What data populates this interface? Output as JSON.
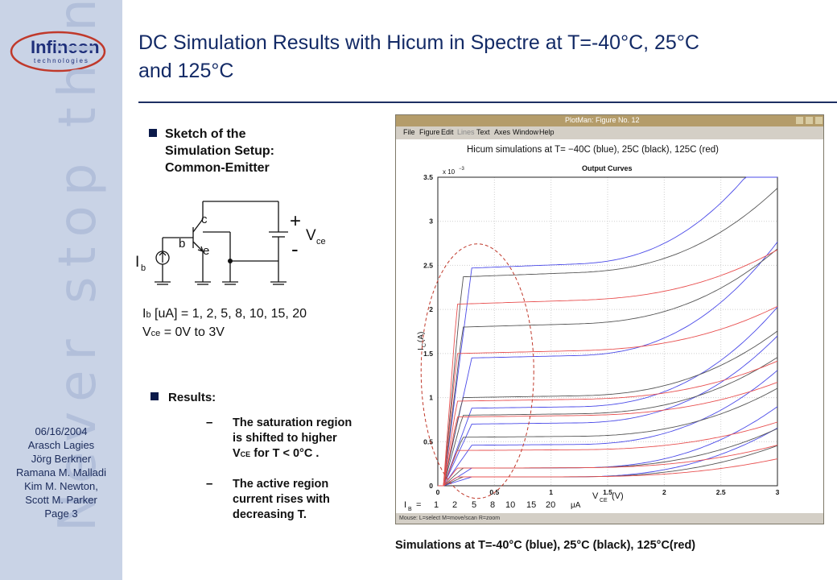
{
  "sidebar": {
    "logo_text": "Infineon",
    "logo_sub": "technologies",
    "watermark": "Never stop thinking",
    "meta_lines": [
      "06/16/2004",
      "Arasch Lagies",
      "Jörg Berkner",
      "Ramana M. Malladi",
      "Kim M. Newton,",
      "Scott M. Parker",
      "Page 3"
    ]
  },
  "title_line1": "DC Simulation Results with Hicum in Spectre at T=-40°C, 25°C",
  "title_line2": "and 125°C",
  "setup": {
    "heading_lines": [
      "Sketch of the",
      "Simulation Setup:",
      "Common-Emitter"
    ],
    "labels": {
      "c": "c",
      "b": "b",
      "e": "e",
      "Ib_main": "I",
      "Ib_sub": "b",
      "plus": "+",
      "minus": "-",
      "Vce_main": "V",
      "Vce_sub": "ce"
    },
    "ib_line_main": "I",
    "ib_line_sub": "b",
    "ib_line_rest": " [uA] = 1, 2, 5, 8, 10, 15, 20",
    "vce_line_main": "V",
    "vce_line_sub": "ce",
    "vce_line_rest": " = 0V to 3V"
  },
  "results": {
    "heading": "Results:",
    "dash": "–",
    "item1_lines": [
      "The saturation region",
      "is shifted to higher"
    ],
    "item1_v": "V",
    "item1_vsub": "CE",
    "item1_tail": " for T < 0°C .",
    "item2_lines": [
      "The active region",
      "current rises with",
      "decreasing T."
    ]
  },
  "window": {
    "title": "PlotMan: Figure No. 12",
    "menus": [
      "File",
      "Figure",
      "Edit",
      "Lines",
      "Text",
      "Axes",
      "Window",
      "Help"
    ],
    "status": "Mouse: L=select  M=move/scan  R=zoom"
  },
  "chart_data": {
    "type": "line",
    "title": "Hicum simulations at T= −40C (blue), 25C (black), 125C (red)",
    "subtitle": "Output Curves",
    "ylabel_main": "I",
    "ylabel_sub": "C",
    "ylabel_unit": "(A)",
    "y_exponent": "x 10",
    "y_exponent_power": "−3",
    "xlabel_main": "V",
    "xlabel_sub": "CE",
    "xlabel_unit": "(V)",
    "xlim": [
      0,
      3
    ],
    "ylim": [
      0,
      3.5
    ],
    "x_ticks": [
      0,
      0.5,
      1,
      1.5,
      2,
      2.5,
      3
    ],
    "x_tick_labels": [
      "0",
      "0.5",
      "1",
      "1.5",
      "2",
      "2.5",
      "3"
    ],
    "y_ticks": [
      0,
      0.5,
      1,
      1.5,
      2,
      2.5,
      3,
      3.5
    ],
    "y_tick_labels": [
      "0",
      "0.5",
      "1",
      "1.5",
      "2",
      "2.5",
      "3",
      "3.5"
    ],
    "grid": true,
    "ib_row_label": "I",
    "ib_row_sub": "B",
    "ib_row_eq": "=",
    "ib_values": [
      "1",
      "2",
      "5",
      "8",
      "10",
      "15",
      "20"
    ],
    "ib_unit": "μA",
    "series": [
      {
        "name": "-40C",
        "color": "#4a4ae8",
        "vsat": 0.3,
        "levels": [
          0.1,
          0.2,
          0.46,
          0.7,
          0.88,
          1.45,
          2.47
        ],
        "slope": 0.55
      },
      {
        "name": "25C",
        "color": "#555555",
        "vsat": 0.22,
        "levels": [
          0.1,
          0.2,
          0.55,
          0.8,
          1.0,
          1.8,
          2.37
        ],
        "slope": 0.35
      },
      {
        "name": "125C",
        "color": "#e85050",
        "vsat": 0.17,
        "levels": [
          0.1,
          0.2,
          0.4,
          0.78,
          0.96,
          1.5,
          2.06
        ],
        "slope": 0.2
      }
    ]
  },
  "caption": "Simulations at T=-40°C (blue), 25°C (black), 125°C(red)"
}
